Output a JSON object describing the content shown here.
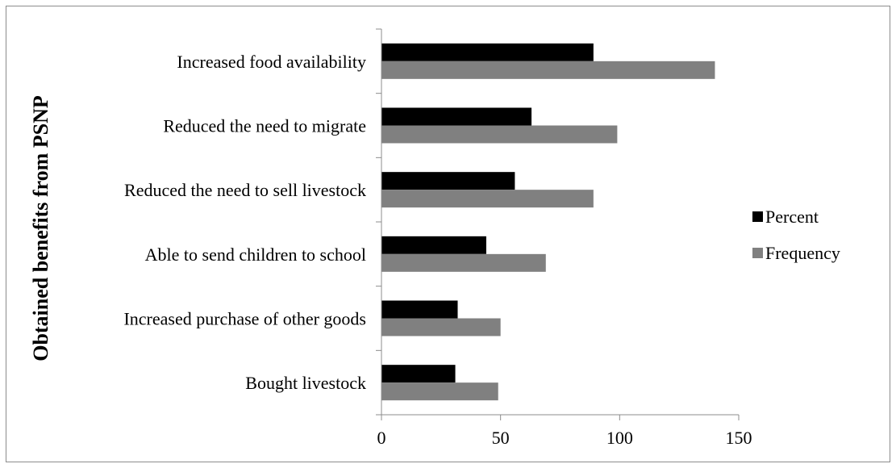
{
  "chart_data": {
    "type": "bar",
    "orientation": "horizontal",
    "title": "",
    "ylabel": "Obtained benefits  from PSNP",
    "xlabel": "",
    "categories": [
      "Bought livestock",
      "Increased purchase of other goods",
      "Able to send children to school",
      "Reduced the need  to sell livestock",
      "Reduced the need to migrate",
      "Increased food availability"
    ],
    "series": [
      {
        "name": "Percent",
        "color": "#000000",
        "values": [
          31,
          32,
          44,
          56,
          63,
          89
        ]
      },
      {
        "name": "Frequency",
        "color": "#808080",
        "values": [
          49,
          50,
          69,
          89,
          99,
          140
        ]
      }
    ],
    "xlim": [
      0,
      150
    ],
    "xticks": [
      "0",
      "50",
      "100",
      "150"
    ],
    "grid": false,
    "legend_position": "right"
  }
}
